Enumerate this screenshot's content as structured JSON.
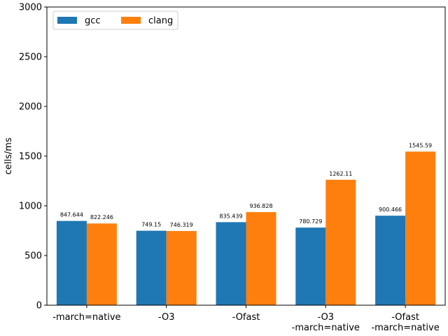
{
  "chart_data": {
    "type": "bar",
    "title": "",
    "xlabel": "",
    "ylabel": "cells/ms",
    "ylim": [
      0,
      3000
    ],
    "yticks": [
      0,
      500,
      1000,
      1500,
      2000,
      2500,
      3000
    ],
    "categories": [
      [
        "-march=native"
      ],
      [
        "-O3"
      ],
      [
        "-Ofast"
      ],
      [
        "-O3",
        "-march=native"
      ],
      [
        "-Ofast",
        "-march=native"
      ]
    ],
    "series": [
      {
        "name": "gcc",
        "color": "#1f77b4",
        "values": [
          847.644,
          749.15,
          835.439,
          780.729,
          900.466
        ],
        "labels": [
          "847.644",
          "749.15",
          "835.439",
          "780.729",
          "900.466"
        ]
      },
      {
        "name": "clang",
        "color": "#ff7f0e",
        "values": [
          822.246,
          746.319,
          936.828,
          1262.11,
          1545.59
        ],
        "labels": [
          "822.246",
          "746.319",
          "936.828",
          "1262.11",
          "1545.59"
        ]
      }
    ],
    "legend": {
      "position": "upper-left",
      "columns": 2
    },
    "grid": false
  }
}
